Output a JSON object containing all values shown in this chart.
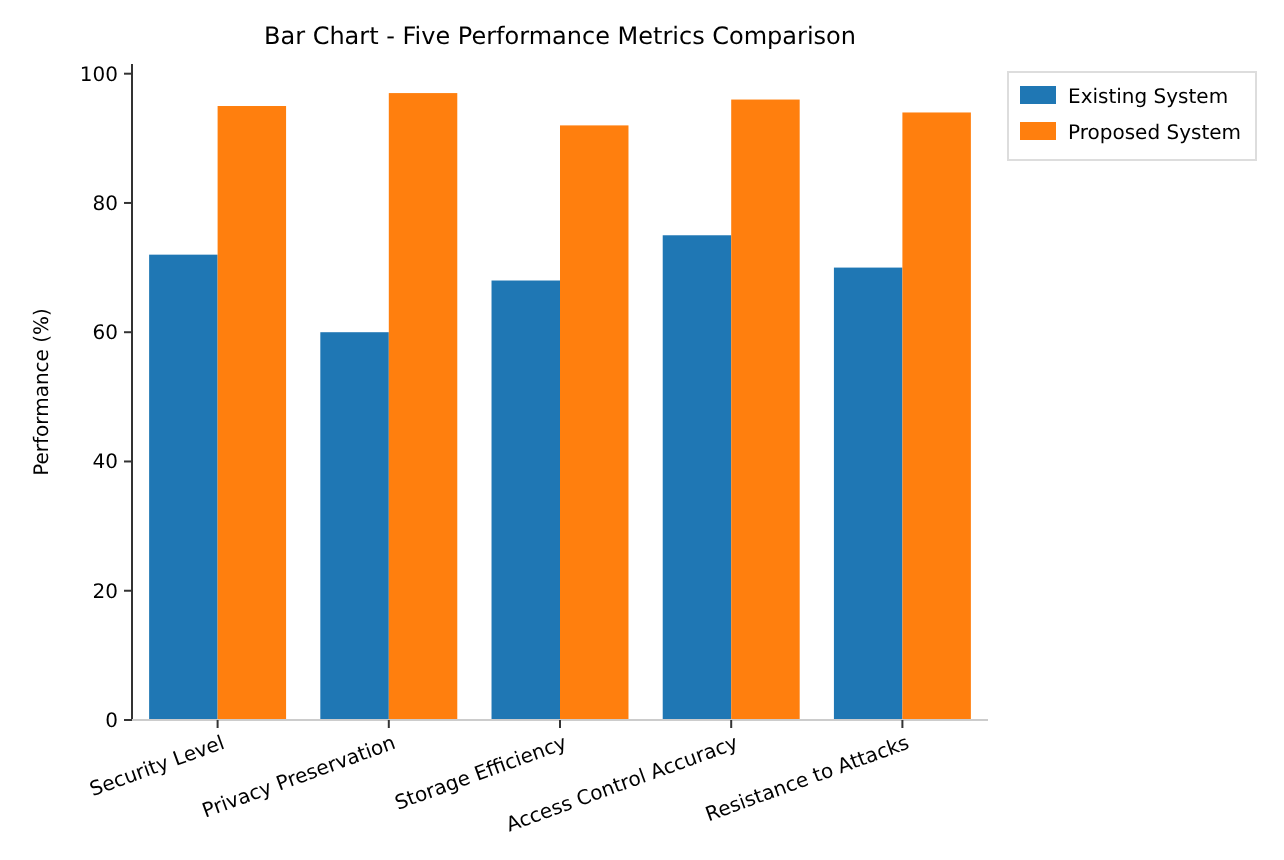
{
  "chart_data": {
    "type": "bar",
    "title": "Bar Chart - Five Performance Metrics Comparison",
    "ylabel": "Performance (%)",
    "categories": [
      "Security Level",
      "Privacy Preservation",
      "Storage Efficiency",
      "Access Control Accuracy",
      "Resistance to Attacks"
    ],
    "series": [
      {
        "name": "Existing System",
        "color": "#1f77b4",
        "values": [
          72,
          60,
          68,
          75,
          70
        ]
      },
      {
        "name": "Proposed System",
        "color": "#ff7f0e",
        "values": [
          95,
          97,
          92,
          96,
          94
        ]
      }
    ],
    "ylim": [
      0,
      101.5
    ],
    "yticks": [
      0,
      20,
      40,
      60,
      80,
      100
    ],
    "grid": false,
    "legend": "top right"
  }
}
